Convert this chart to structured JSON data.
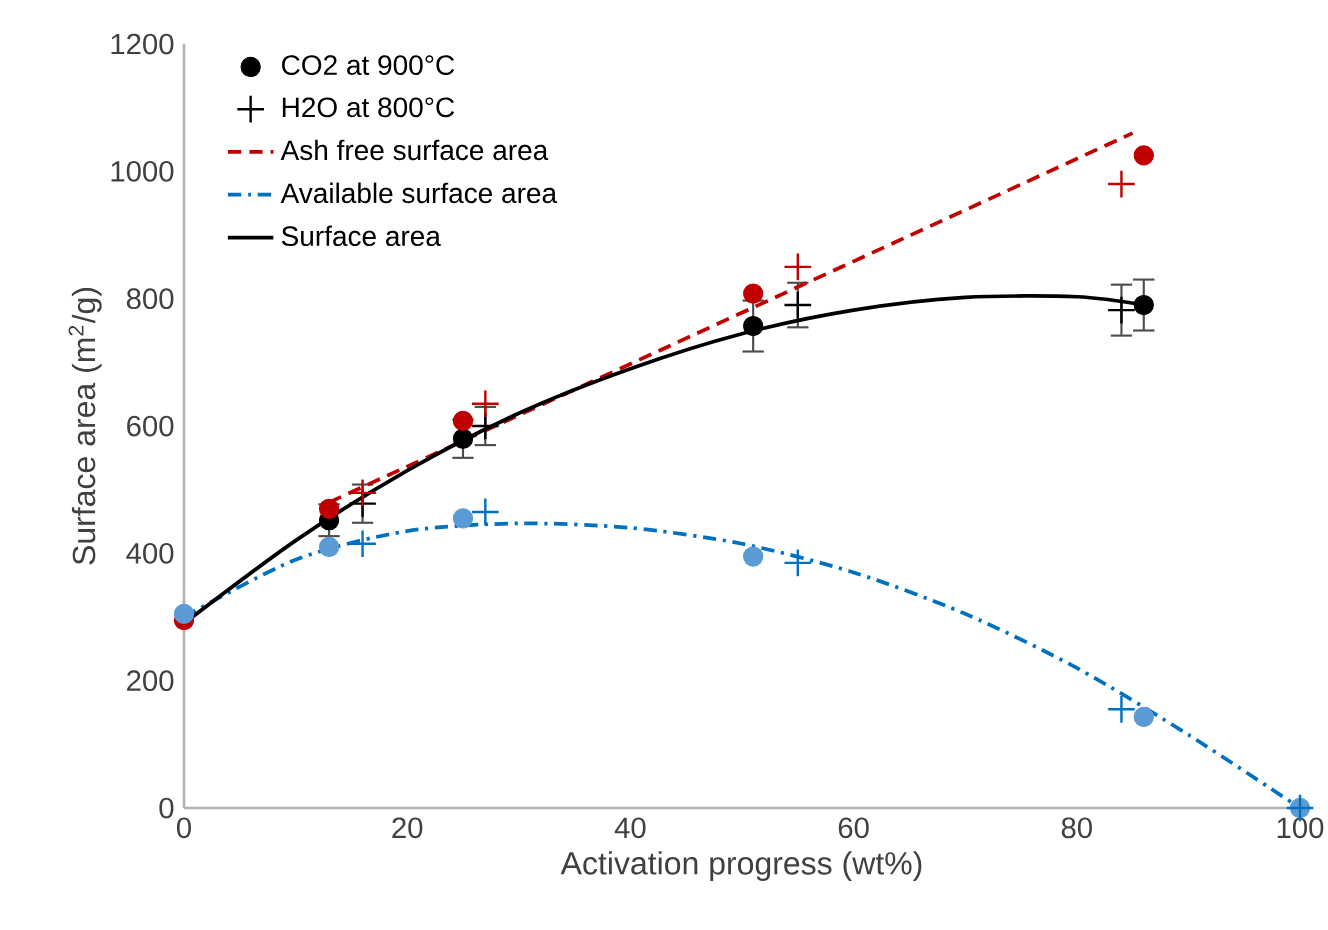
{
  "chart_data": {
    "type": "scatter",
    "xlabel": "Activation progress (wt%)",
    "ylabel": "Surface area (m$^{2}$/g)",
    "xlim": [
      0,
      100
    ],
    "ylim": [
      0,
      1200
    ],
    "xticks": [
      0,
      20,
      40,
      60,
      80,
      100
    ],
    "yticks": [
      0,
      200,
      400,
      600,
      800,
      1000,
      1200
    ],
    "grid": false,
    "legend": "top left",
    "series": [
      {
        "name": "CO2 at 900°C",
        "marker": "circle",
        "color": "#000000",
        "x": [
          13,
          25,
          51,
          86
        ],
        "values": [
          452,
          580,
          757,
          790
        ],
        "errors": [
          25,
          30,
          40,
          40
        ]
      },
      {
        "name": "H2O at 800°C",
        "marker": "cross",
        "color": "#000000",
        "x": [
          16,
          27,
          55,
          84
        ],
        "values": [
          478,
          600,
          790,
          782
        ],
        "errors": [
          30,
          30,
          35,
          40
        ]
      },
      {
        "name": "Ash free surface area",
        "type": "line",
        "marker": "none",
        "line_style": "dashed",
        "color": "#c00000",
        "x": [
          13,
          85
        ],
        "values": [
          480,
          1060
        ]
      },
      {
        "name": "Available surface area",
        "type": "line",
        "marker": "none",
        "line_style": "dashdot",
        "color": "#0070c0",
        "x": [
          0,
          10,
          20,
          30,
          40,
          50,
          60,
          70,
          80,
          90,
          100
        ],
        "values": [
          300,
          390,
          435,
          447,
          440,
          415,
          370,
          305,
          220,
          115,
          0
        ]
      },
      {
        "name": "Surface area",
        "type": "line",
        "marker": "none",
        "line_style": "solid",
        "color": "#000000",
        "x": [
          0,
          10,
          20,
          30,
          40,
          50,
          60,
          70,
          80,
          86
        ],
        "values": [
          290,
          420,
          530,
          620,
          690,
          745,
          782,
          802,
          803,
          790
        ]
      },
      {
        "marker": "circle",
        "color": "#c00000",
        "x": [
          0,
          13,
          25,
          51,
          86
        ],
        "values": [
          295,
          470,
          608,
          808,
          1025
        ]
      },
      {
        "marker": "cross",
        "color": "#c00000",
        "x": [
          16,
          27,
          55,
          84
        ],
        "values": [
          495,
          635,
          850,
          980
        ]
      },
      {
        "marker": "circle",
        "color": "#5b9bd5",
        "x": [
          0,
          13,
          25,
          51,
          86,
          100
        ],
        "values": [
          305,
          410,
          455,
          395,
          143,
          0
        ]
      },
      {
        "marker": "cross",
        "color": "#0070c0",
        "x": [
          16,
          27,
          55,
          84,
          100
        ],
        "values": [
          415,
          465,
          385,
          155,
          0
        ]
      }
    ]
  }
}
